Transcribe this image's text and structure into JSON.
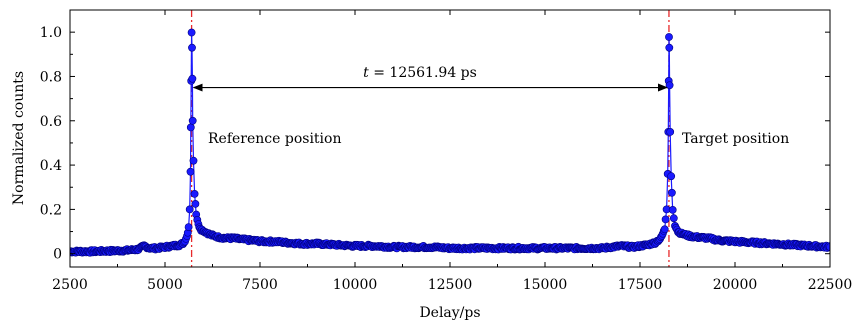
{
  "chart_data": {
    "type": "scatter",
    "xlabel": "Delay/ps",
    "ylabel": "Normalized counts",
    "xlim": [
      2500,
      22500
    ],
    "ylim": [
      -0.06,
      1.1
    ],
    "xticks": [
      2500,
      5000,
      7500,
      10000,
      12500,
      15000,
      17500,
      20000,
      22500
    ],
    "yticks": [
      0,
      0.2,
      0.4,
      0.6,
      0.8,
      1.0
    ],
    "ytick_labels": [
      "0",
      "0.2",
      "0.4",
      "0.6",
      "0.8",
      "1.0"
    ],
    "grid": false,
    "marker_color": "#1a1aff",
    "line_color": "#1a1aff",
    "marker_edge_color": "#000080",
    "vline_color": "#e8292b",
    "peak1_x": 5700,
    "peak2_x": 18262,
    "series": [
      {
        "x": [
          2500,
          3000,
          3500,
          4000,
          4300,
          4450,
          4600,
          4800,
          5000,
          5200,
          5400,
          5500,
          5580,
          5620,
          5650,
          5670,
          5680,
          5690,
          5700,
          5710,
          5720,
          5730,
          5750,
          5780,
          5820,
          5880,
          5950,
          6050,
          6200,
          6400,
          6600,
          6800,
          7000,
          7300,
          7600,
          7900,
          8200,
          8600,
          9000,
          9500,
          10000,
          10500,
          11000,
          11500,
          12000,
          12500,
          13000,
          13500,
          14000,
          14500,
          15000,
          15500,
          16000,
          16500,
          17000,
          17300,
          17500,
          17700,
          17900,
          18050,
          18150,
          18200,
          18230,
          18245,
          18255,
          18262,
          18270,
          18280,
          18295,
          18320,
          18360,
          18420,
          18500,
          18600,
          18800,
          19000,
          19300,
          19600,
          20000,
          20500,
          21000,
          21500,
          22000,
          22500
        ],
        "y": [
          0.01,
          0.01,
          0.012,
          0.015,
          0.02,
          0.035,
          0.025,
          0.025,
          0.03,
          0.035,
          0.04,
          0.05,
          0.08,
          0.12,
          0.2,
          0.37,
          0.57,
          0.78,
          1.0,
          0.93,
          0.79,
          0.6,
          0.42,
          0.27,
          0.18,
          0.13,
          0.11,
          0.1,
          0.085,
          0.075,
          0.07,
          0.07,
          0.065,
          0.06,
          0.055,
          0.055,
          0.05,
          0.045,
          0.045,
          0.04,
          0.035,
          0.035,
          0.03,
          0.03,
          0.03,
          0.025,
          0.025,
          0.025,
          0.025,
          0.025,
          0.025,
          0.025,
          0.025,
          0.025,
          0.035,
          0.03,
          0.035,
          0.04,
          0.05,
          0.07,
          0.11,
          0.2,
          0.36,
          0.55,
          0.78,
          0.98,
          0.93,
          0.76,
          0.55,
          0.35,
          0.2,
          0.13,
          0.1,
          0.09,
          0.08,
          0.075,
          0.07,
          0.06,
          0.055,
          0.05,
          0.045,
          0.04,
          0.035,
          0.03
        ]
      }
    ],
    "arrow": {
      "x_start": 5700,
      "x_end": 18262,
      "y": 0.75
    },
    "annotations": {
      "t_symbol": "t",
      "t_value": " = 12561.94 ps",
      "reference": "Reference position",
      "target": "Target position"
    }
  }
}
